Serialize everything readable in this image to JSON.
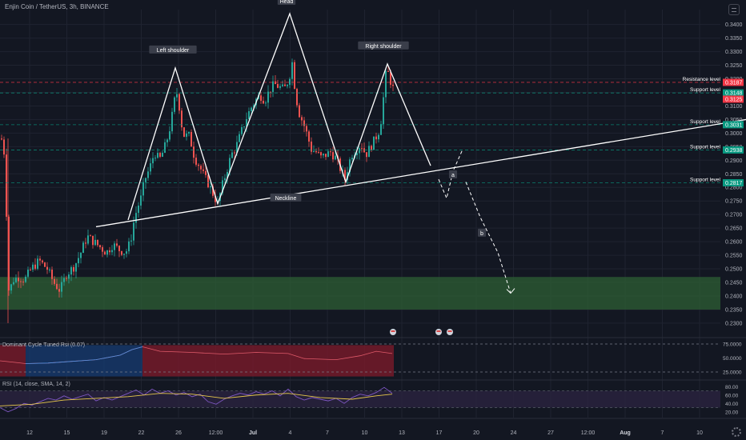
{
  "header": {
    "symbol": "Enjin Coin / TetherUS, 3h, BINANCE"
  },
  "chart_data": {
    "type": "candlestick",
    "pair": "Enjin Coin / TetherUS",
    "timeframe": "3h",
    "exchange": "BINANCE",
    "x_ticks": [
      "12",
      "15",
      "19",
      "22",
      "26",
      "12:00",
      "Jul",
      "4",
      "7",
      "10",
      "13",
      "17",
      "20",
      "24",
      "27",
      "12:00",
      "Aug",
      "7",
      "10"
    ],
    "y_ticks": [
      "0.2300",
      "0.2350",
      "0.2400",
      "0.2450",
      "0.2500",
      "0.2550",
      "0.2600",
      "0.2650",
      "0.2700",
      "0.2750",
      "0.2800",
      "0.2850",
      "0.2900",
      "0.2950",
      "0.3000",
      "0.3050",
      "0.3100",
      "0.3150",
      "0.3200",
      "0.3250",
      "0.3300",
      "0.3350",
      "0.3400"
    ],
    "ylim": [
      0.2282,
      0.3455
    ],
    "price_path": [
      [
        0,
        0.298
      ],
      [
        3,
        0.297
      ],
      [
        6,
        0.285
      ],
      [
        9,
        0.242
      ],
      [
        12,
        0.243
      ],
      [
        16,
        0.246
      ],
      [
        22,
        0.247
      ],
      [
        30,
        0.246
      ],
      [
        38,
        0.25
      ],
      [
        48,
        0.253
      ],
      [
        58,
        0.25
      ],
      [
        66,
        0.245
      ],
      [
        74,
        0.242
      ],
      [
        82,
        0.248
      ],
      [
        92,
        0.251
      ],
      [
        100,
        0.256
      ],
      [
        108,
        0.262
      ],
      [
        116,
        0.26
      ],
      [
        124,
        0.258
      ],
      [
        132,
        0.256
      ],
      [
        140,
        0.259
      ],
      [
        148,
        0.257
      ],
      [
        156,
        0.256
      ],
      [
        162,
        0.26
      ],
      [
        166,
        0.267
      ],
      [
        170,
        0.272
      ],
      [
        175,
        0.276
      ],
      [
        180,
        0.283
      ],
      [
        186,
        0.287
      ],
      [
        192,
        0.293
      ],
      [
        198,
        0.29
      ],
      [
        204,
        0.294
      ],
      [
        210,
        0.3
      ],
      [
        215,
        0.308
      ],
      [
        219,
        0.316
      ],
      [
        222,
        0.312
      ],
      [
        226,
        0.303
      ],
      [
        230,
        0.298
      ],
      [
        234,
        0.3
      ],
      [
        238,
        0.296
      ],
      [
        242,
        0.291
      ],
      [
        248,
        0.288
      ],
      [
        254,
        0.284
      ],
      [
        260,
        0.281
      ],
      [
        266,
        0.277
      ],
      [
        271,
        0.274
      ],
      [
        276,
        0.28
      ],
      [
        282,
        0.286
      ],
      [
        288,
        0.292
      ],
      [
        294,
        0.295
      ],
      [
        300,
        0.3
      ],
      [
        306,
        0.305
      ],
      [
        312,
        0.309
      ],
      [
        318,
        0.312
      ],
      [
        324,
        0.314
      ],
      [
        330,
        0.312
      ],
      [
        336,
        0.316
      ],
      [
        342,
        0.318
      ],
      [
        348,
        0.317
      ],
      [
        354,
        0.316
      ],
      [
        360,
        0.32
      ],
      [
        364,
        0.326
      ],
      [
        368,
        0.315
      ],
      [
        372,
        0.308
      ],
      [
        376,
        0.305
      ],
      [
        380,
        0.302
      ],
      [
        384,
        0.298
      ],
      [
        388,
        0.294
      ],
      [
        394,
        0.293
      ],
      [
        400,
        0.291
      ],
      [
        406,
        0.292
      ],
      [
        412,
        0.293
      ],
      [
        418,
        0.291
      ],
      [
        424,
        0.287
      ],
      [
        430,
        0.283
      ],
      [
        434,
        0.288
      ],
      [
        438,
        0.292
      ],
      [
        444,
        0.294
      ],
      [
        450,
        0.296
      ],
      [
        456,
        0.292
      ],
      [
        462,
        0.295
      ],
      [
        468,
        0.298
      ],
      [
        474,
        0.302
      ],
      [
        478,
        0.313
      ],
      [
        482,
        0.324
      ],
      [
        486,
        0.32
      ],
      [
        490,
        0.3165
      ]
    ],
    "pattern": {
      "name": "Head and shoulders",
      "labels": [
        "Left shoulder",
        "Head",
        "Right shoulder",
        "Neckline",
        "a",
        "b"
      ],
      "zigzag": [
        [
          160,
          0.268
        ],
        [
          219,
          0.324
        ],
        [
          272,
          0.274
        ],
        [
          362,
          0.344
        ],
        [
          432,
          0.282
        ],
        [
          484,
          0.3255
        ],
        [
          538,
          0.288
        ]
      ],
      "neckline": [
        [
          120,
          0.2655
        ],
        [
          932,
          0.305
        ]
      ],
      "projection_a": [
        [
          548,
          0.283
        ],
        [
          558,
          0.276
        ],
        [
          566,
          0.286
        ],
        [
          578,
          0.294
        ]
      ],
      "projection_b": [
        [
          582,
          0.282
        ],
        [
          600,
          0.269
        ],
        [
          622,
          0.256
        ],
        [
          638,
          0.241
        ]
      ]
    },
    "levels": [
      {
        "name": "Resistance level",
        "price": 0.3187,
        "price_label": "0.3187",
        "color": "#f23645"
      },
      {
        "name": "Support level",
        "price": 0.3148,
        "price_label": "0.3148",
        "color": "#089981"
      },
      {
        "name": "Support level",
        "price": 0.3031,
        "price_label": "0.3031",
        "color": "#089981"
      },
      {
        "name": "Support level",
        "price": 0.2938,
        "price_label": "0.2938",
        "color": "#089981"
      },
      {
        "name": "Support level",
        "price": 0.2817,
        "price_label": "0.2817",
        "color": "#089981"
      }
    ],
    "current_price": {
      "value": 0.3125,
      "label": "0.3125",
      "color": "#f23645"
    },
    "demand_zone": {
      "from": 0.235,
      "to": 0.247,
      "color": "#2e5f34"
    },
    "indicators": [
      {
        "name": "Dominant Cycle Tuned Rsi (0.07)",
        "y_ticks": [
          "25.0000",
          "50.0000",
          "75.0000"
        ],
        "ylim": [
          15,
          85
        ],
        "levels": [
          25,
          75
        ],
        "regions": [
          {
            "from_x": 0,
            "to_x": 32,
            "color": "#7a1a2a"
          },
          {
            "from_x": 32,
            "to_x": 178,
            "color": "#163a6e"
          },
          {
            "from_x": 178,
            "to_x": 492,
            "color": "#7a1a2a"
          }
        ],
        "line": [
          [
            0,
            45
          ],
          [
            20,
            42
          ],
          [
            32,
            40
          ],
          [
            60,
            41
          ],
          [
            90,
            44
          ],
          [
            120,
            47
          ],
          [
            150,
            55
          ],
          [
            165,
            65
          ],
          [
            178,
            70
          ],
          [
            200,
            62
          ],
          [
            240,
            60
          ],
          [
            280,
            57
          ],
          [
            320,
            60
          ],
          [
            360,
            58
          ],
          [
            380,
            49
          ],
          [
            420,
            47
          ],
          [
            450,
            54
          ],
          [
            470,
            62
          ],
          [
            490,
            58
          ]
        ]
      },
      {
        "name": "RSI (14, close, SMA, 14, 2)",
        "y_ticks": [
          "20.00",
          "40.00",
          "60.00",
          "80.00"
        ],
        "ylim": [
          10,
          90
        ],
        "band": [
          30,
          70
        ],
        "rsi": [
          [
            0,
            30
          ],
          [
            10,
            20
          ],
          [
            20,
            28
          ],
          [
            30,
            40
          ],
          [
            40,
            36
          ],
          [
            50,
            44
          ],
          [
            60,
            52
          ],
          [
            70,
            48
          ],
          [
            80,
            58
          ],
          [
            90,
            50
          ],
          [
            100,
            56
          ],
          [
            110,
            62
          ],
          [
            120,
            46
          ],
          [
            130,
            54
          ],
          [
            140,
            48
          ],
          [
            150,
            56
          ],
          [
            160,
            64
          ],
          [
            170,
            72
          ],
          [
            180,
            60
          ],
          [
            190,
            74
          ],
          [
            200,
            64
          ],
          [
            210,
            70
          ],
          [
            220,
            60
          ],
          [
            230,
            66
          ],
          [
            240,
            56
          ],
          [
            250,
            62
          ],
          [
            260,
            44
          ],
          [
            270,
            38
          ],
          [
            280,
            50
          ],
          [
            290,
            58
          ],
          [
            300,
            64
          ],
          [
            310,
            60
          ],
          [
            320,
            68
          ],
          [
            330,
            62
          ],
          [
            340,
            70
          ],
          [
            350,
            58
          ],
          [
            360,
            74
          ],
          [
            370,
            56
          ],
          [
            380,
            48
          ],
          [
            390,
            54
          ],
          [
            400,
            50
          ],
          [
            410,
            46
          ],
          [
            420,
            52
          ],
          [
            430,
            40
          ],
          [
            440,
            54
          ],
          [
            450,
            62
          ],
          [
            460,
            58
          ],
          [
            470,
            66
          ],
          [
            480,
            78
          ],
          [
            490,
            64
          ]
        ],
        "sma": [
          [
            0,
            34
          ],
          [
            40,
            38
          ],
          [
            80,
            48
          ],
          [
            120,
            52
          ],
          [
            160,
            56
          ],
          [
            200,
            64
          ],
          [
            240,
            62
          ],
          [
            280,
            52
          ],
          [
            320,
            60
          ],
          [
            360,
            64
          ],
          [
            400,
            54
          ],
          [
            440,
            50
          ],
          [
            470,
            58
          ],
          [
            490,
            62
          ]
        ]
      }
    ]
  },
  "colors": {
    "background": "#131722",
    "up": "#26a69a",
    "down": "#ef5350",
    "pattern_line": "#ffffff",
    "rsi": "#7e57c2",
    "rsi_sma": "#e6c84a",
    "grid": "#1f2330"
  }
}
